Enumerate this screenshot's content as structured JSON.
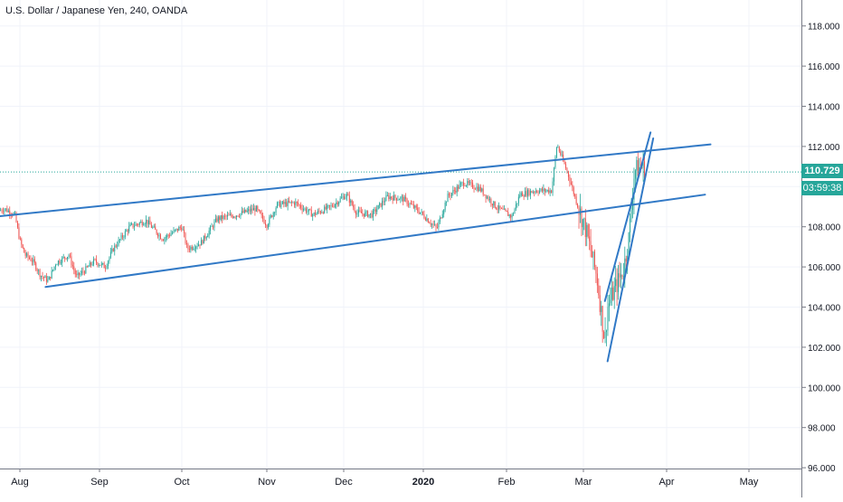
{
  "header": {
    "title": "U.S. Dollar / Japanese Yen, 240, OANDA"
  },
  "price_scale": {
    "last_price": "110.729",
    "countdown": "03:59:38",
    "last_price_value": 110.729
  },
  "colors": {
    "up_candle": "#26a69a",
    "down_candle": "#ef5350",
    "trend_line": "#3179c6",
    "last_price_line": "#26a69a",
    "grid": "#f0f3fa"
  },
  "chart_data": {
    "type": "candlestick",
    "x_labels": [
      "Aug",
      "Sep",
      "Oct",
      "Nov",
      "Dec",
      "2020",
      "Feb",
      "Mar",
      "Apr",
      "May"
    ],
    "y_ticks": [
      "96.000",
      "98.000",
      "100.000",
      "102.000",
      "104.000",
      "106.000",
      "108.000",
      "110.000",
      "112.000",
      "114.000",
      "116.000",
      "118.000"
    ],
    "y_tick_values": [
      96,
      98,
      100,
      102,
      104,
      106,
      108,
      110,
      112,
      114,
      116,
      118
    ],
    "ylim": [
      95.8,
      119.6
    ],
    "grid": true,
    "price_path": [
      [
        "2019-07-22",
        108.7
      ],
      [
        "2019-07-26",
        108.9
      ],
      [
        "2019-07-30",
        108.6
      ],
      [
        "2019-08-01",
        107.3
      ],
      [
        "2019-08-03",
        106.6
      ],
      [
        "2019-08-06",
        106.3
      ],
      [
        "2019-08-09",
        105.6
      ],
      [
        "2019-08-12",
        105.3
      ],
      [
        "2019-08-15",
        106.2
      ],
      [
        "2019-08-20",
        106.6
      ],
      [
        "2019-08-23",
        105.5
      ],
      [
        "2019-08-26",
        105.8
      ],
      [
        "2019-08-30",
        106.3
      ],
      [
        "2019-09-03",
        106.0
      ],
      [
        "2019-09-06",
        106.9
      ],
      [
        "2019-09-12",
        108.0
      ],
      [
        "2019-09-18",
        108.3
      ],
      [
        "2019-09-24",
        107.4
      ],
      [
        "2019-10-01",
        108.0
      ],
      [
        "2019-10-03",
        106.9
      ],
      [
        "2019-10-08",
        107.2
      ],
      [
        "2019-10-14",
        108.4
      ],
      [
        "2019-10-21",
        108.6
      ],
      [
        "2019-10-28",
        108.9
      ],
      [
        "2019-11-01",
        108.1
      ],
      [
        "2019-11-05",
        109.1
      ],
      [
        "2019-11-12",
        109.2
      ],
      [
        "2019-11-19",
        108.6
      ],
      [
        "2019-11-26",
        109.0
      ],
      [
        "2019-12-02",
        109.6
      ],
      [
        "2019-12-06",
        108.7
      ],
      [
        "2019-12-12",
        108.6
      ],
      [
        "2019-12-18",
        109.5
      ],
      [
        "2019-12-24",
        109.4
      ],
      [
        "2019-12-31",
        108.7
      ],
      [
        "2020-01-06",
        107.9
      ],
      [
        "2020-01-10",
        109.5
      ],
      [
        "2020-01-16",
        110.2
      ],
      [
        "2020-01-22",
        109.9
      ],
      [
        "2020-01-28",
        109.0
      ],
      [
        "2020-02-03",
        108.5
      ],
      [
        "2020-02-06",
        109.6
      ],
      [
        "2020-02-12",
        109.8
      ],
      [
        "2020-02-18",
        109.8
      ],
      [
        "2020-02-20",
        112.1
      ],
      [
        "2020-02-24",
        110.7
      ],
      [
        "2020-02-27",
        109.4
      ],
      [
        "2020-03-02",
        107.8
      ],
      [
        "2020-03-06",
        105.5
      ],
      [
        "2020-03-09",
        102.3
      ],
      [
        "2020-03-10",
        104.0
      ],
      [
        "2020-03-13",
        105.0
      ],
      [
        "2020-03-16",
        105.9
      ],
      [
        "2020-03-18",
        107.5
      ],
      [
        "2020-03-20",
        110.8
      ],
      [
        "2020-03-23",
        111.0
      ],
      [
        "2020-03-24",
        110.7
      ]
    ],
    "trend_lines": [
      {
        "name": "channel-upper",
        "from": [
          "2019-07-22",
          108.5
        ],
        "to": [
          "2020-04-17",
          112.1
        ]
      },
      {
        "name": "channel-lower",
        "from": [
          "2019-08-11",
          105.0
        ],
        "to": [
          "2020-04-15",
          109.6
        ]
      },
      {
        "name": "rising-wedge-upper",
        "from": [
          "2020-03-09",
          104.3
        ],
        "to": [
          "2020-03-26",
          112.7
        ]
      },
      {
        "name": "rising-wedge-lower",
        "from": [
          "2020-03-10",
          101.3
        ],
        "to": [
          "2020-03-27",
          112.4
        ]
      }
    ]
  }
}
